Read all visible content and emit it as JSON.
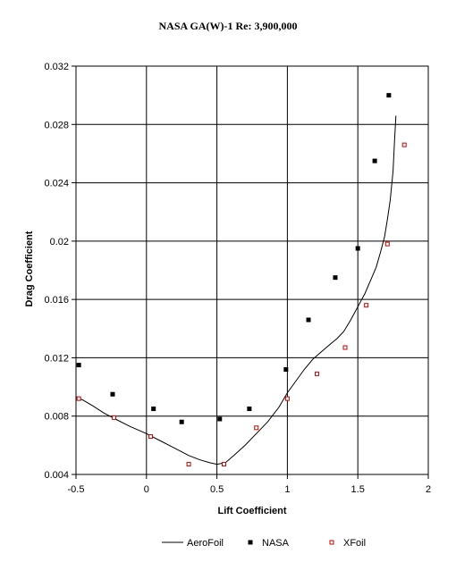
{
  "chart_data": {
    "type": "scatter",
    "title": "NASA GA(W)-1 Re: 3,900,000",
    "xlabel": "Lift Coefficient",
    "ylabel": "Drag Coefficient",
    "xlim": [
      -0.5,
      2
    ],
    "ylim": [
      0.004,
      0.032
    ],
    "xticks": [
      -0.5,
      0,
      0.5,
      1,
      1.5,
      2
    ],
    "xtick_labels": [
      "-0.5",
      "0",
      "0.5",
      "1",
      "1.5",
      "2"
    ],
    "yticks": [
      0.004,
      0.008,
      0.012,
      0.016,
      0.02,
      0.024,
      0.028,
      0.032
    ],
    "ytick_labels": [
      "0.004",
      "0.008",
      "0.012",
      "0.016",
      "0.02",
      "0.024",
      "0.028",
      "0.032"
    ],
    "grid": true,
    "legend_position": "bottom",
    "series": [
      {
        "name": "AeroFoil",
        "style": "line",
        "color": "#000000",
        "x": [
          -0.5,
          -0.45,
          -0.38,
          -0.3,
          -0.22,
          -0.12,
          0.0,
          0.1,
          0.2,
          0.3,
          0.38,
          0.45,
          0.5,
          0.56,
          0.62,
          0.7,
          0.78,
          0.86,
          0.94,
          1.0,
          1.06,
          1.12,
          1.18,
          1.24,
          1.3,
          1.35,
          1.4,
          1.45,
          1.5,
          1.55,
          1.59,
          1.63,
          1.66,
          1.69,
          1.71,
          1.73,
          1.75,
          1.76,
          1.77
        ],
        "y": [
          0.0093,
          0.0091,
          0.0087,
          0.0082,
          0.0078,
          0.0073,
          0.0068,
          0.0063,
          0.0058,
          0.0053,
          0.005,
          0.0048,
          0.0047,
          0.0048,
          0.0053,
          0.006,
          0.0068,
          0.0076,
          0.0086,
          0.0096,
          0.0104,
          0.0112,
          0.0119,
          0.0124,
          0.0129,
          0.0133,
          0.0138,
          0.0146,
          0.0155,
          0.0164,
          0.0173,
          0.0182,
          0.0192,
          0.0203,
          0.0215,
          0.0228,
          0.0248,
          0.0268,
          0.0286
        ]
      },
      {
        "name": "NASA",
        "style": "filled-square",
        "color": "#000000",
        "x": [
          -0.48,
          -0.24,
          0.05,
          0.25,
          0.52,
          0.73,
          0.99,
          1.15,
          1.34,
          1.5,
          1.62,
          1.72
        ],
        "y": [
          0.0115,
          0.0095,
          0.0085,
          0.0076,
          0.0078,
          0.0085,
          0.0112,
          0.0146,
          0.0175,
          0.0195,
          0.0255,
          0.03
        ]
      },
      {
        "name": "XFoil",
        "style": "open-square",
        "color": "#cc0000",
        "x": [
          -0.48,
          -0.23,
          0.03,
          0.3,
          0.55,
          0.78,
          1.0,
          1.21,
          1.41,
          1.56,
          1.71,
          1.83
        ],
        "y": [
          0.0092,
          0.0079,
          0.0066,
          0.0047,
          0.0047,
          0.0072,
          0.0092,
          0.0109,
          0.0127,
          0.0156,
          0.0198,
          0.0266
        ]
      }
    ]
  }
}
